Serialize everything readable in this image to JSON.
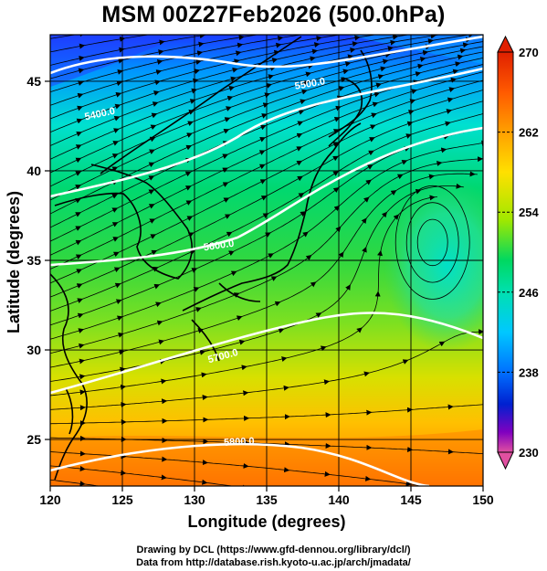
{
  "title": "MSM 00Z27Feb2026 (500.0hPa)",
  "footer": {
    "line1": "Drawing by DCL (https://www.gfd-dennou.org/library/dcl/)",
    "line2": "Data from http://database.rish.kyoto-u.ac.jp/arch/jmadata/"
  },
  "map": {
    "x_axis": {
      "label": "Longitude (degrees)",
      "range": [
        120,
        150
      ],
      "ticks": [
        "120",
        "125",
        "130",
        "135",
        "140",
        "145",
        "150"
      ]
    },
    "y_axis": {
      "label": "Latitude  (degrees)",
      "range": [
        22.4,
        47.6
      ],
      "ticks": [
        "25",
        "30",
        "35",
        "40",
        "45"
      ]
    },
    "contours": [
      {
        "label": "5400.0"
      },
      {
        "label": "5500.0"
      },
      {
        "label": "5600.0"
      },
      {
        "label": "5700.0"
      },
      {
        "label": "5800.0"
      }
    ],
    "colorbar": {
      "ticks": [
        "270",
        "262",
        "254",
        "246",
        "238",
        "230"
      ],
      "range": [
        230,
        270
      ],
      "colors": [
        "#e0508a",
        "#b000c0",
        "#5000c0",
        "#0020d0",
        "#0070ff",
        "#00c8ff",
        "#00e0b0",
        "#00d860",
        "#30e030",
        "#a0e800",
        "#ffe000",
        "#ffa000",
        "#ff5a00",
        "#e02000"
      ]
    }
  }
}
